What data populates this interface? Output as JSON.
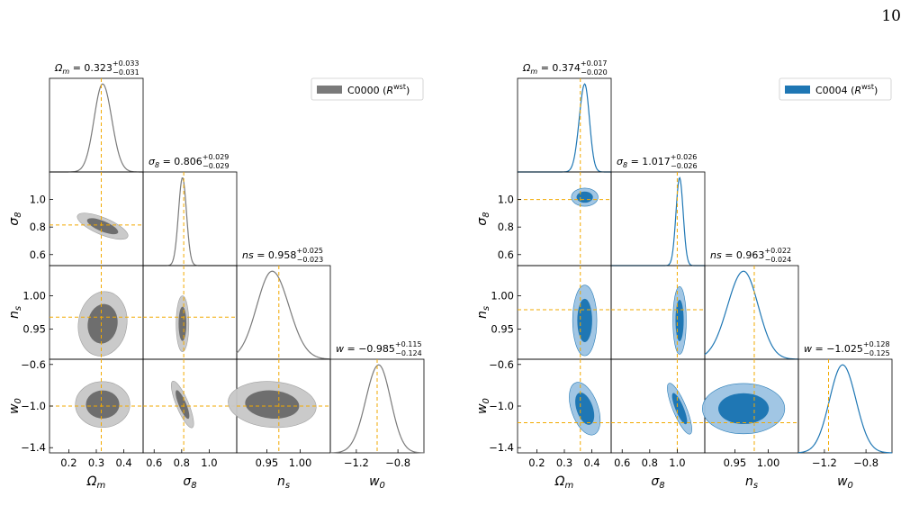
{
  "page_number": "10",
  "chart_data": [
    {
      "type": "corner",
      "legend": "C0000 (R^wst)",
      "legend_position": "top-right",
      "colors": {
        "line": "#7a7a7a",
        "fill_inner": "#6e6e6e",
        "fill_outer": "#c8c8c8",
        "truth": "#f2a900"
      },
      "params": [
        {
          "label": "Ωm",
          "median": 0.323,
          "plus": "+0.033",
          "minus": "−0.031",
          "title_prefix": "Ω",
          "title_sub": "m",
          "lim": [
            0.13,
            0.47
          ],
          "ticks": [
            0.2,
            0.3,
            0.4
          ],
          "ticklabels": [
            "0.2",
            "0.3",
            "0.4"
          ],
          "truth": 0.318
        },
        {
          "label": "σ8",
          "median": 0.806,
          "plus": "+0.029",
          "minus": "−0.029",
          "title_prefix": "σ",
          "title_sub": "8",
          "lim": [
            0.52,
            1.2
          ],
          "ticks": [
            0.6,
            0.8,
            1.0
          ],
          "ticklabels": [
            "0.6",
            "0.8",
            "1.0"
          ],
          "truth": 0.815
        },
        {
          "label": "ns",
          "median": 0.958,
          "plus": "+0.025",
          "minus": "−0.023",
          "title_prefix": "ns",
          "title_sub": "",
          "lim": [
            0.905,
            1.045
          ],
          "ticks": [
            0.95,
            1.0
          ],
          "ticklabels": [
            "0.95",
            "1.00"
          ],
          "truth": 0.968
        },
        {
          "label": "w0",
          "median": -0.985,
          "plus": "+0.115",
          "minus": "−0.124",
          "title_prefix": "w",
          "title_sub": "",
          "lim": [
            -1.45,
            -0.55
          ],
          "ticks": [
            -1.2,
            -0.8
          ],
          "ticklabels": [
            "−1.2",
            "−0.8"
          ],
          "truth": -1.0
        }
      ],
      "titles": [
        "0.323",
        "0.806",
        "0.958",
        "−0.985"
      ],
      "y_ticks": {
        "sigma8": [
          "0.6",
          "0.8",
          "1.0"
        ],
        "ns": [
          "0.95",
          "1.00"
        ],
        "w0": [
          "−1.4",
          "−1.0",
          "−0.6"
        ]
      },
      "y_tick_values": {
        "sigma8": [
          0.6,
          0.8,
          1.0
        ],
        "ns": [
          0.95,
          1.0
        ],
        "w0": [
          -1.4,
          -1.0,
          -0.6
        ]
      },
      "axis_labels": [
        "Ω",
        "σ",
        "n",
        "w"
      ],
      "axis_subs": [
        "m",
        "8",
        "s",
        "0"
      ],
      "contours": [
        {
          "row": 1,
          "col": 0,
          "cx": 0.323,
          "cy": 0.806,
          "sx": 0.045,
          "sy": 0.028,
          "rho": -0.55
        },
        {
          "row": 2,
          "col": 0,
          "cx": 0.323,
          "cy": 0.958,
          "sx": 0.04,
          "sy": 0.022,
          "rho": -0.2
        },
        {
          "row": 2,
          "col": 1,
          "cx": 0.806,
          "cy": 0.958,
          "sx": 0.021,
          "sy": 0.019,
          "rho": 0.0
        },
        {
          "row": 3,
          "col": 0,
          "cx": 0.323,
          "cy": -0.985,
          "sx": 0.045,
          "sy": 0.1,
          "rho": 0.0
        },
        {
          "row": 3,
          "col": 1,
          "cx": 0.806,
          "cy": -0.985,
          "sx": 0.02,
          "sy": 0.11,
          "rho": 0.55
        },
        {
          "row": 3,
          "col": 2,
          "cx": 0.958,
          "cy": -0.985,
          "sx": 0.03,
          "sy": 0.1,
          "rho": -0.1
        }
      ]
    },
    {
      "type": "corner",
      "legend": "C0004 (R^wst)",
      "legend_position": "top-right",
      "colors": {
        "line": "#1f77b4",
        "fill_inner": "#1f77b4",
        "fill_outer": "#9dc3e3",
        "truth": "#f2a900"
      },
      "params": [
        {
          "label": "Ωm",
          "median": 0.374,
          "plus": "+0.017",
          "minus": "−0.020",
          "title_prefix": "Ω",
          "title_sub": "m",
          "lim": [
            0.13,
            0.47
          ],
          "ticks": [
            0.2,
            0.3,
            0.4
          ],
          "ticklabels": [
            "0.2",
            "0.3",
            "0.4"
          ],
          "truth": 0.358
        },
        {
          "label": "σ8",
          "median": 1.017,
          "plus": "+0.026",
          "minus": "−0.026",
          "title_prefix": "σ",
          "title_sub": "8",
          "lim": [
            0.52,
            1.2
          ],
          "ticks": [
            0.6,
            0.8,
            1.0
          ],
          "ticklabels": [
            "0.6",
            "0.8",
            "1.0"
          ],
          "truth": 1.0
        },
        {
          "label": "ns",
          "median": 0.963,
          "plus": "+0.022",
          "minus": "−0.024",
          "title_prefix": "ns",
          "title_sub": "",
          "lim": [
            0.905,
            1.045
          ],
          "ticks": [
            0.95,
            1.0
          ],
          "ticklabels": [
            "0.95",
            "1.00"
          ],
          "truth": 0.979
        },
        {
          "label": "w0",
          "median": -1.025,
          "plus": "+0.128",
          "minus": "−0.125",
          "title_prefix": "w",
          "title_sub": "",
          "lim": [
            -1.45,
            -0.55
          ],
          "ticks": [
            -1.2,
            -0.8
          ],
          "ticklabels": [
            "−1.2",
            "−0.8"
          ],
          "truth": -1.16
        }
      ],
      "titles": [
        "0.374",
        "1.017",
        "0.963",
        "−1.025"
      ],
      "y_ticks": {
        "sigma8": [
          "0.6",
          "0.8",
          "1.0"
        ],
        "ns": [
          "0.95",
          "1.00"
        ],
        "w0": [
          "−1.4",
          "−1.0",
          "−0.6"
        ]
      },
      "y_tick_values": {
        "sigma8": [
          0.6,
          0.8,
          1.0
        ],
        "ns": [
          0.95,
          1.0
        ],
        "w0": [
          -1.4,
          -1.0,
          -0.6
        ]
      },
      "axis_labels": [
        "Ω",
        "σ",
        "n",
        "w"
      ],
      "axis_subs": [
        "m",
        "8",
        "s",
        "0"
      ],
      "contours": [
        {
          "row": 1,
          "col": 0,
          "cx": 0.374,
          "cy": 1.017,
          "sx": 0.022,
          "sy": 0.03,
          "rho": 0.0
        },
        {
          "row": 2,
          "col": 0,
          "cx": 0.374,
          "cy": 0.963,
          "sx": 0.02,
          "sy": 0.024,
          "rho": 0.0
        },
        {
          "row": 2,
          "col": 1,
          "cx": 1.017,
          "cy": 0.963,
          "sx": 0.022,
          "sy": 0.023,
          "rho": 0.0
        },
        {
          "row": 3,
          "col": 0,
          "cx": 0.374,
          "cy": -1.025,
          "sx": 0.022,
          "sy": 0.12,
          "rho": 0.45
        },
        {
          "row": 3,
          "col": 1,
          "cx": 1.017,
          "cy": -1.025,
          "sx": 0.022,
          "sy": 0.12,
          "rho": 0.55
        },
        {
          "row": 3,
          "col": 2,
          "cx": 0.963,
          "cy": -1.025,
          "sx": 0.028,
          "sy": 0.11,
          "rho": 0.0
        }
      ]
    }
  ]
}
